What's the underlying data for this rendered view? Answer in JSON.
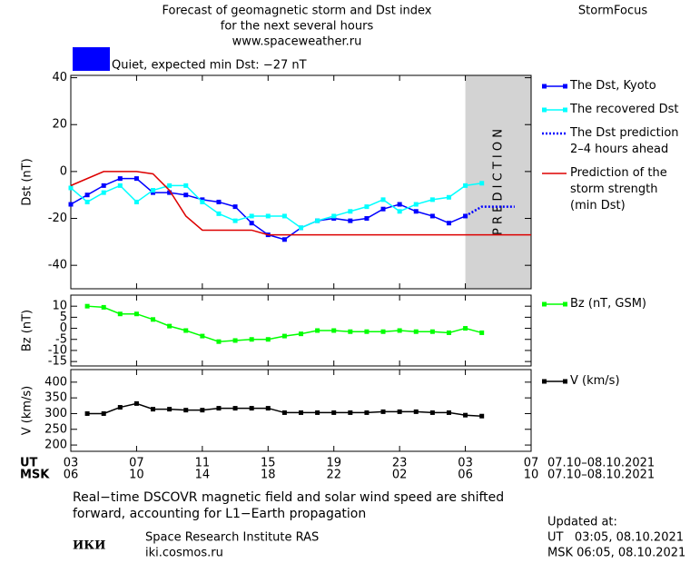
{
  "header": {
    "title": [
      "Forecast of geomagnetic storm and Dst index",
      "for the next several hours",
      "www.spaceweather.ru"
    ],
    "brand": "StormFocus"
  },
  "status": {
    "text": "Quiet, expected min Dst: −27 nT",
    "color": "#0000ff"
  },
  "chart_data": [
    {
      "type": "line",
      "ylabel": "Dst (nT)",
      "xlim": [
        0,
        28
      ],
      "ylim": [
        -50,
        41
      ],
      "yticks": [
        40,
        20,
        0,
        -20,
        -40
      ],
      "shaded_xlim": [
        24,
        28
      ],
      "annotation": "P R E D I C T I O N",
      "series": [
        {
          "name": "The Dst, Kyoto",
          "color": "#0000ff",
          "marker": "square",
          "x": [
            0,
            1,
            2,
            3,
            4,
            5,
            6,
            7,
            8,
            9,
            10,
            11,
            12,
            13,
            14,
            15,
            16,
            17,
            18,
            19,
            20,
            21,
            22,
            23,
            24
          ],
          "values": [
            -14,
            -10,
            -6,
            -3,
            -3,
            -9,
            -9,
            -10,
            -12,
            -13,
            -15,
            -22,
            -27,
            -29,
            -24,
            -21,
            -20,
            -21,
            -20,
            -16,
            -14,
            -17,
            -19,
            -22,
            -19
          ]
        },
        {
          "name": "The recovered Dst",
          "color": "#00ffff",
          "marker": "square",
          "x": [
            0,
            1,
            2,
            3,
            4,
            5,
            6,
            7,
            8,
            9,
            10,
            11,
            12,
            13,
            14,
            15,
            16,
            17,
            18,
            19,
            20,
            21,
            22,
            23,
            24,
            25
          ],
          "values": [
            -7,
            -13,
            -9,
            -6,
            -13,
            -8,
            -6,
            -6,
            -13,
            -18,
            -21,
            -19,
            -19,
            -19,
            -24,
            -21,
            -19,
            -17,
            -15,
            -12,
            -17,
            -14,
            -12,
            -11,
            -6,
            -5
          ]
        },
        {
          "name": "The Dst prediction\n2–4 hours ahead",
          "color": "#0000ff",
          "dotted": true,
          "x": [
            24,
            25,
            26,
            27
          ],
          "values": [
            -19,
            -15,
            -15,
            -15
          ]
        },
        {
          "name": "Prediction of the\nstorm strength\n(min Dst)",
          "color": "#dd0000",
          "x": [
            0,
            1,
            2,
            4,
            5,
            6,
            7,
            8,
            11,
            12,
            28
          ],
          "values": [
            -6,
            -3,
            0,
            0,
            -1,
            -8,
            -19,
            -25,
            -25,
            -27,
            -27
          ]
        }
      ]
    },
    {
      "type": "line",
      "ylabel": "Bz (nT)",
      "xlim": [
        0,
        28
      ],
      "ylim": [
        -17,
        15
      ],
      "yticks": [
        10,
        5,
        0,
        -5,
        -10,
        -15
      ],
      "series": [
        {
          "name": "Bz (nT, GSM)",
          "color": "#00ff00",
          "marker": "square",
          "x": [
            1,
            2,
            3,
            4,
            5,
            6,
            7,
            8,
            9,
            10,
            11,
            12,
            13,
            14,
            15,
            16,
            17,
            18,
            19,
            20,
            21,
            22,
            23,
            24,
            25
          ],
          "values": [
            10,
            9.5,
            6.5,
            6.5,
            4,
            1,
            -1,
            -3.5,
            -6,
            -5.5,
            -5,
            -5,
            -3.5,
            -2.5,
            -1,
            -1,
            -1.5,
            -1.5,
            -1.5,
            -1,
            -1.5,
            -1.5,
            -2,
            0,
            -2
          ]
        }
      ]
    },
    {
      "type": "line",
      "ylabel": "V (km/s)",
      "xlim": [
        0,
        28
      ],
      "ylim": [
        180,
        440
      ],
      "yticks": [
        400,
        350,
        300,
        250,
        200
      ],
      "xlabel": "UT",
      "x2label": "MSK",
      "date_range": "07.10–08.10.2021",
      "date_range2": "07.10–08.10.2021",
      "xticks": [
        {
          "value": 0,
          "label": "03"
        },
        {
          "value": 4,
          "label": "07"
        },
        {
          "value": 8,
          "label": "11"
        },
        {
          "value": 12,
          "label": "15"
        },
        {
          "value": 16,
          "label": "19"
        },
        {
          "value": 20,
          "label": "23"
        },
        {
          "value": 24,
          "label": "03"
        },
        {
          "value": 28,
          "label": "07"
        }
      ],
      "x2ticks": [
        {
          "value": 0,
          "label": "06"
        },
        {
          "value": 4,
          "label": "10"
        },
        {
          "value": 8,
          "label": "14"
        },
        {
          "value": 12,
          "label": "18"
        },
        {
          "value": 16,
          "label": "22"
        },
        {
          "value": 20,
          "label": "02"
        },
        {
          "value": 24,
          "label": "06"
        },
        {
          "value": 28,
          "label": "10"
        }
      ],
      "series": [
        {
          "name": "V (km/s)",
          "color": "#000000",
          "marker": "square",
          "x": [
            1,
            2,
            3,
            4,
            5,
            6,
            7,
            8,
            9,
            10,
            11,
            12,
            13,
            14,
            15,
            16,
            17,
            18,
            19,
            20,
            21,
            22,
            23,
            24,
            25
          ],
          "values": [
            300,
            300,
            320,
            332,
            314,
            314,
            311,
            311,
            317,
            317,
            317,
            317,
            303,
            303,
            303,
            303,
            303,
            303,
            306,
            306,
            306,
            303,
            303,
            295,
            292
          ]
        }
      ]
    }
  ],
  "footer": {
    "note": "Real−time DSCOVR magnetic field and solar wind speed are shifted\nforward, accounting for L1−Earth propagation",
    "logo": "ИКИ",
    "institute": "Space Research Institute RAS",
    "site": "iki.cosmos.ru",
    "updated": [
      "Updated at:",
      "UT   03:05, 08.10.2021",
      "MSK 06:05, 08.10.2021"
    ]
  }
}
